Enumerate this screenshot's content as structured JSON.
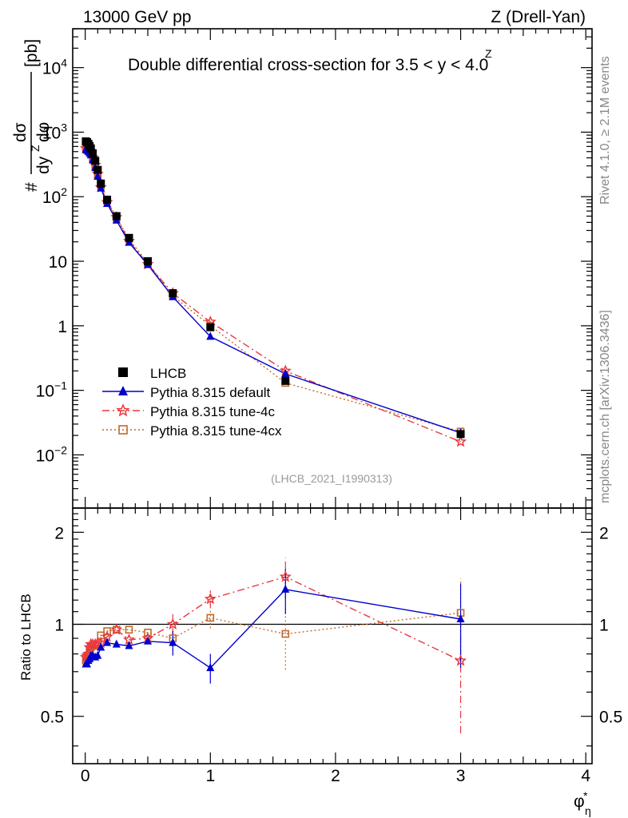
{
  "header": {
    "left": "13000 GeV pp",
    "right": "Z (Drell-Yan)",
    "title": "Double differential cross-section for 3.5 < y",
    "title_sup": "Z",
    "title_tail": " < 4.0"
  },
  "side_labels": {
    "rivet": "Rivet 4.1.0, ≥ 2.1M events",
    "mcplots": "mcplots.cern.ch [arXiv:1306.3436]"
  },
  "analysis_id": "(LHCB_2021_I1990313)",
  "main_ylabel": {
    "hash": "#",
    "numerator": "dσ",
    "denominator": "dy",
    "denominator_sup": "Z",
    "phi": "dφ",
    "unit": "[pb]"
  },
  "ratio_ylabel": "Ratio to LHCB",
  "xlabel": {
    "base": "φ",
    "sup": "*",
    "sub": "η"
  },
  "main_ticks": [
    {
      "value": 0.01,
      "base": "10",
      "exp": "−2"
    },
    {
      "value": 0.1,
      "base": "10",
      "exp": "−1"
    },
    {
      "value": 1,
      "base": "1",
      "exp": ""
    },
    {
      "value": 10,
      "base": "10",
      "exp": ""
    },
    {
      "value": 100,
      "base": "10",
      "exp": "2"
    },
    {
      "value": 1000,
      "base": "10",
      "exp": "3"
    },
    {
      "value": 10000,
      "base": "10",
      "exp": "4"
    }
  ],
  "ratio_ticks": [
    "0.5",
    "1",
    "2"
  ],
  "x_ticks": [
    "0",
    "1",
    "2",
    "3",
    "4"
  ],
  "legend": [
    {
      "label": "LHCB",
      "color": "#000000",
      "marker": "square"
    },
    {
      "label": "Pythia 8.315 default",
      "color": "#0000cc",
      "marker": "triangle"
    },
    {
      "label": "Pythia 8.315 tune-4c",
      "color": "#e8383d",
      "marker": "star"
    },
    {
      "label": "Pythia 8.315 tune-4cx",
      "color": "#c06a2b",
      "marker": "open-square"
    }
  ],
  "chart_data": {
    "type": "line",
    "title": "Double differential cross-section for 3.5 < y^Z < 4.0",
    "xlabel": "φ*_η",
    "ylabel": "d²σ / dy^Z dφ*_η [pb]",
    "xlim": [
      -0.1,
      4.05
    ],
    "ylim": [
      0.0015,
      40000
    ],
    "yscale": "log",
    "ratio_ylim": [
      0.35,
      2.4
    ],
    "x": [
      0.005,
      0.015,
      0.025,
      0.035,
      0.045,
      0.06,
      0.08,
      0.1,
      0.125,
      0.175,
      0.25,
      0.35,
      0.5,
      0.7,
      1.0,
      1.6,
      3.0
    ],
    "series": [
      {
        "name": "LHCB",
        "values": [
          720,
          700,
          660,
          610,
          560,
          470,
          360,
          260,
          160,
          90,
          50,
          23,
          10,
          3.2,
          0.95,
          0.14,
          0.021
        ]
      },
      {
        "name": "Pythia 8.315 default",
        "values": [
          535,
          520,
          500,
          470,
          440,
          370,
          280,
          205,
          135,
          78,
          43,
          19.5,
          8.8,
          2.8,
          0.68,
          0.18,
          0.022
        ],
        "ratio": [
          0.74,
          0.74,
          0.76,
          0.77,
          0.79,
          0.79,
          0.78,
          0.79,
          0.84,
          0.87,
          0.86,
          0.85,
          0.88,
          0.87,
          0.72,
          1.3,
          1.04
        ]
      },
      {
        "name": "Pythia 8.315 tune-4c",
        "values": [
          560,
          550,
          530,
          510,
          480,
          405,
          310,
          225,
          140,
          82,
          48,
          20.5,
          9.0,
          3.2,
          1.15,
          0.2,
          0.016
        ],
        "ratio": [
          0.78,
          0.79,
          0.8,
          0.84,
          0.86,
          0.86,
          0.86,
          0.87,
          0.87,
          0.91,
          0.96,
          0.89,
          0.9,
          1.0,
          1.21,
          1.43,
          0.76
        ]
      },
      {
        "name": "Pythia 8.315 tune-4cx",
        "values": [
          545,
          540,
          520,
          500,
          470,
          400,
          305,
          220,
          148,
          86,
          48,
          22,
          9.4,
          2.9,
          1.0,
          0.13,
          0.023
        ],
        "ratio": [
          0.76,
          0.77,
          0.79,
          0.82,
          0.84,
          0.85,
          0.85,
          0.85,
          0.92,
          0.95,
          0.96,
          0.96,
          0.94,
          0.9,
          1.05,
          0.93,
          1.09
        ]
      }
    ]
  }
}
